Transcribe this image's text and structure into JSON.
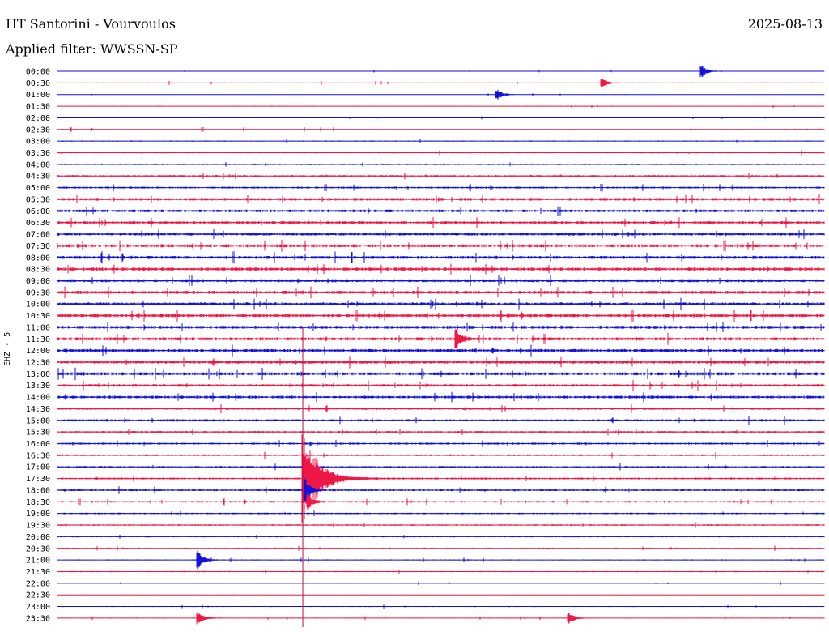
{
  "header": {
    "station": "HT Santorini - Vourvoulos",
    "date": "2025-08-13",
    "filter": "Applied filter: WWSSN-SP"
  },
  "channel_label": "EHZ - 5",
  "colors": {
    "blue": "#1212d8",
    "red": "#ee1846",
    "marker": "#c0103a"
  },
  "chart_data": {
    "type": "helicorder",
    "row_labels": [
      "00:00",
      "00:30",
      "01:00",
      "01:30",
      "02:00",
      "02:30",
      "03:00",
      "03:30",
      "04:00",
      "04:30",
      "05:00",
      "05:30",
      "06:00",
      "06:30",
      "07:00",
      "07:30",
      "08:00",
      "08:30",
      "09:00",
      "09:30",
      "10:00",
      "10:30",
      "11:00",
      "11:30",
      "12:00",
      "12:30",
      "13:00",
      "13:30",
      "14:00",
      "14:30",
      "15:00",
      "15:30",
      "16:00",
      "16:30",
      "17:00",
      "17:30",
      "18:00",
      "18:30",
      "19:00",
      "19:30",
      "20:00",
      "20:30",
      "21:00",
      "21:30",
      "22:00",
      "22:30",
      "23:00",
      "23:30"
    ],
    "row_colors": [
      "blue",
      "red"
    ],
    "row_noise_level": [
      0.2,
      0.25,
      0.2,
      0.25,
      0.2,
      0.3,
      0.3,
      0.35,
      0.4,
      0.5,
      0.5,
      0.7,
      0.7,
      0.7,
      0.7,
      0.8,
      0.8,
      0.8,
      0.8,
      0.8,
      0.8,
      0.8,
      0.8,
      0.8,
      0.8,
      0.8,
      0.8,
      0.7,
      0.7,
      0.6,
      0.6,
      0.5,
      0.5,
      0.45,
      0.45,
      0.5,
      0.5,
      0.45,
      0.4,
      0.4,
      0.35,
      0.35,
      0.3,
      0.3,
      0.25,
      0.25,
      0.25,
      0.25
    ],
    "events": [
      {
        "row": 0,
        "minute": 25.2,
        "amp": 8
      },
      {
        "row": 1,
        "minute": 21.3,
        "amp": 6
      },
      {
        "row": 2,
        "minute": 17.2,
        "amp": 7
      },
      {
        "row": 23,
        "minute": 15.6,
        "amp": 12
      },
      {
        "row": 35,
        "minute": 9.6,
        "amp": 60
      },
      {
        "row": 36,
        "minute": 9.7,
        "amp": 14
      },
      {
        "row": 37,
        "minute": 9.8,
        "amp": 10
      },
      {
        "row": 42,
        "minute": 5.5,
        "amp": 12
      },
      {
        "row": 47,
        "minute": 5.5,
        "amp": 8
      },
      {
        "row": 47,
        "minute": 20.0,
        "amp": 8
      }
    ],
    "event_marker_minute": 9.6
  }
}
